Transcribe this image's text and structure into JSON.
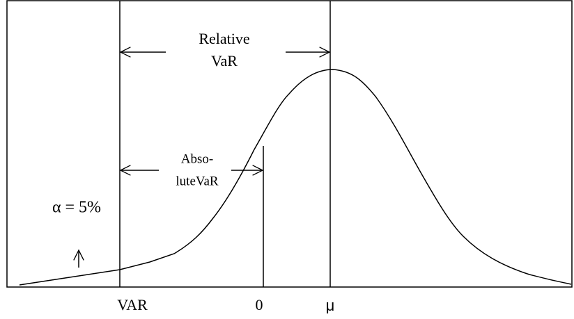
{
  "relative_var": {
    "line1": "Relative",
    "line2": "VaR"
  },
  "absolute_var": {
    "line1": "Abso-",
    "line2": "luteVaR"
  },
  "alpha_label": "α = 5%",
  "x_labels": {
    "var": "VAR",
    "zero": "0",
    "mu": "μ"
  }
}
